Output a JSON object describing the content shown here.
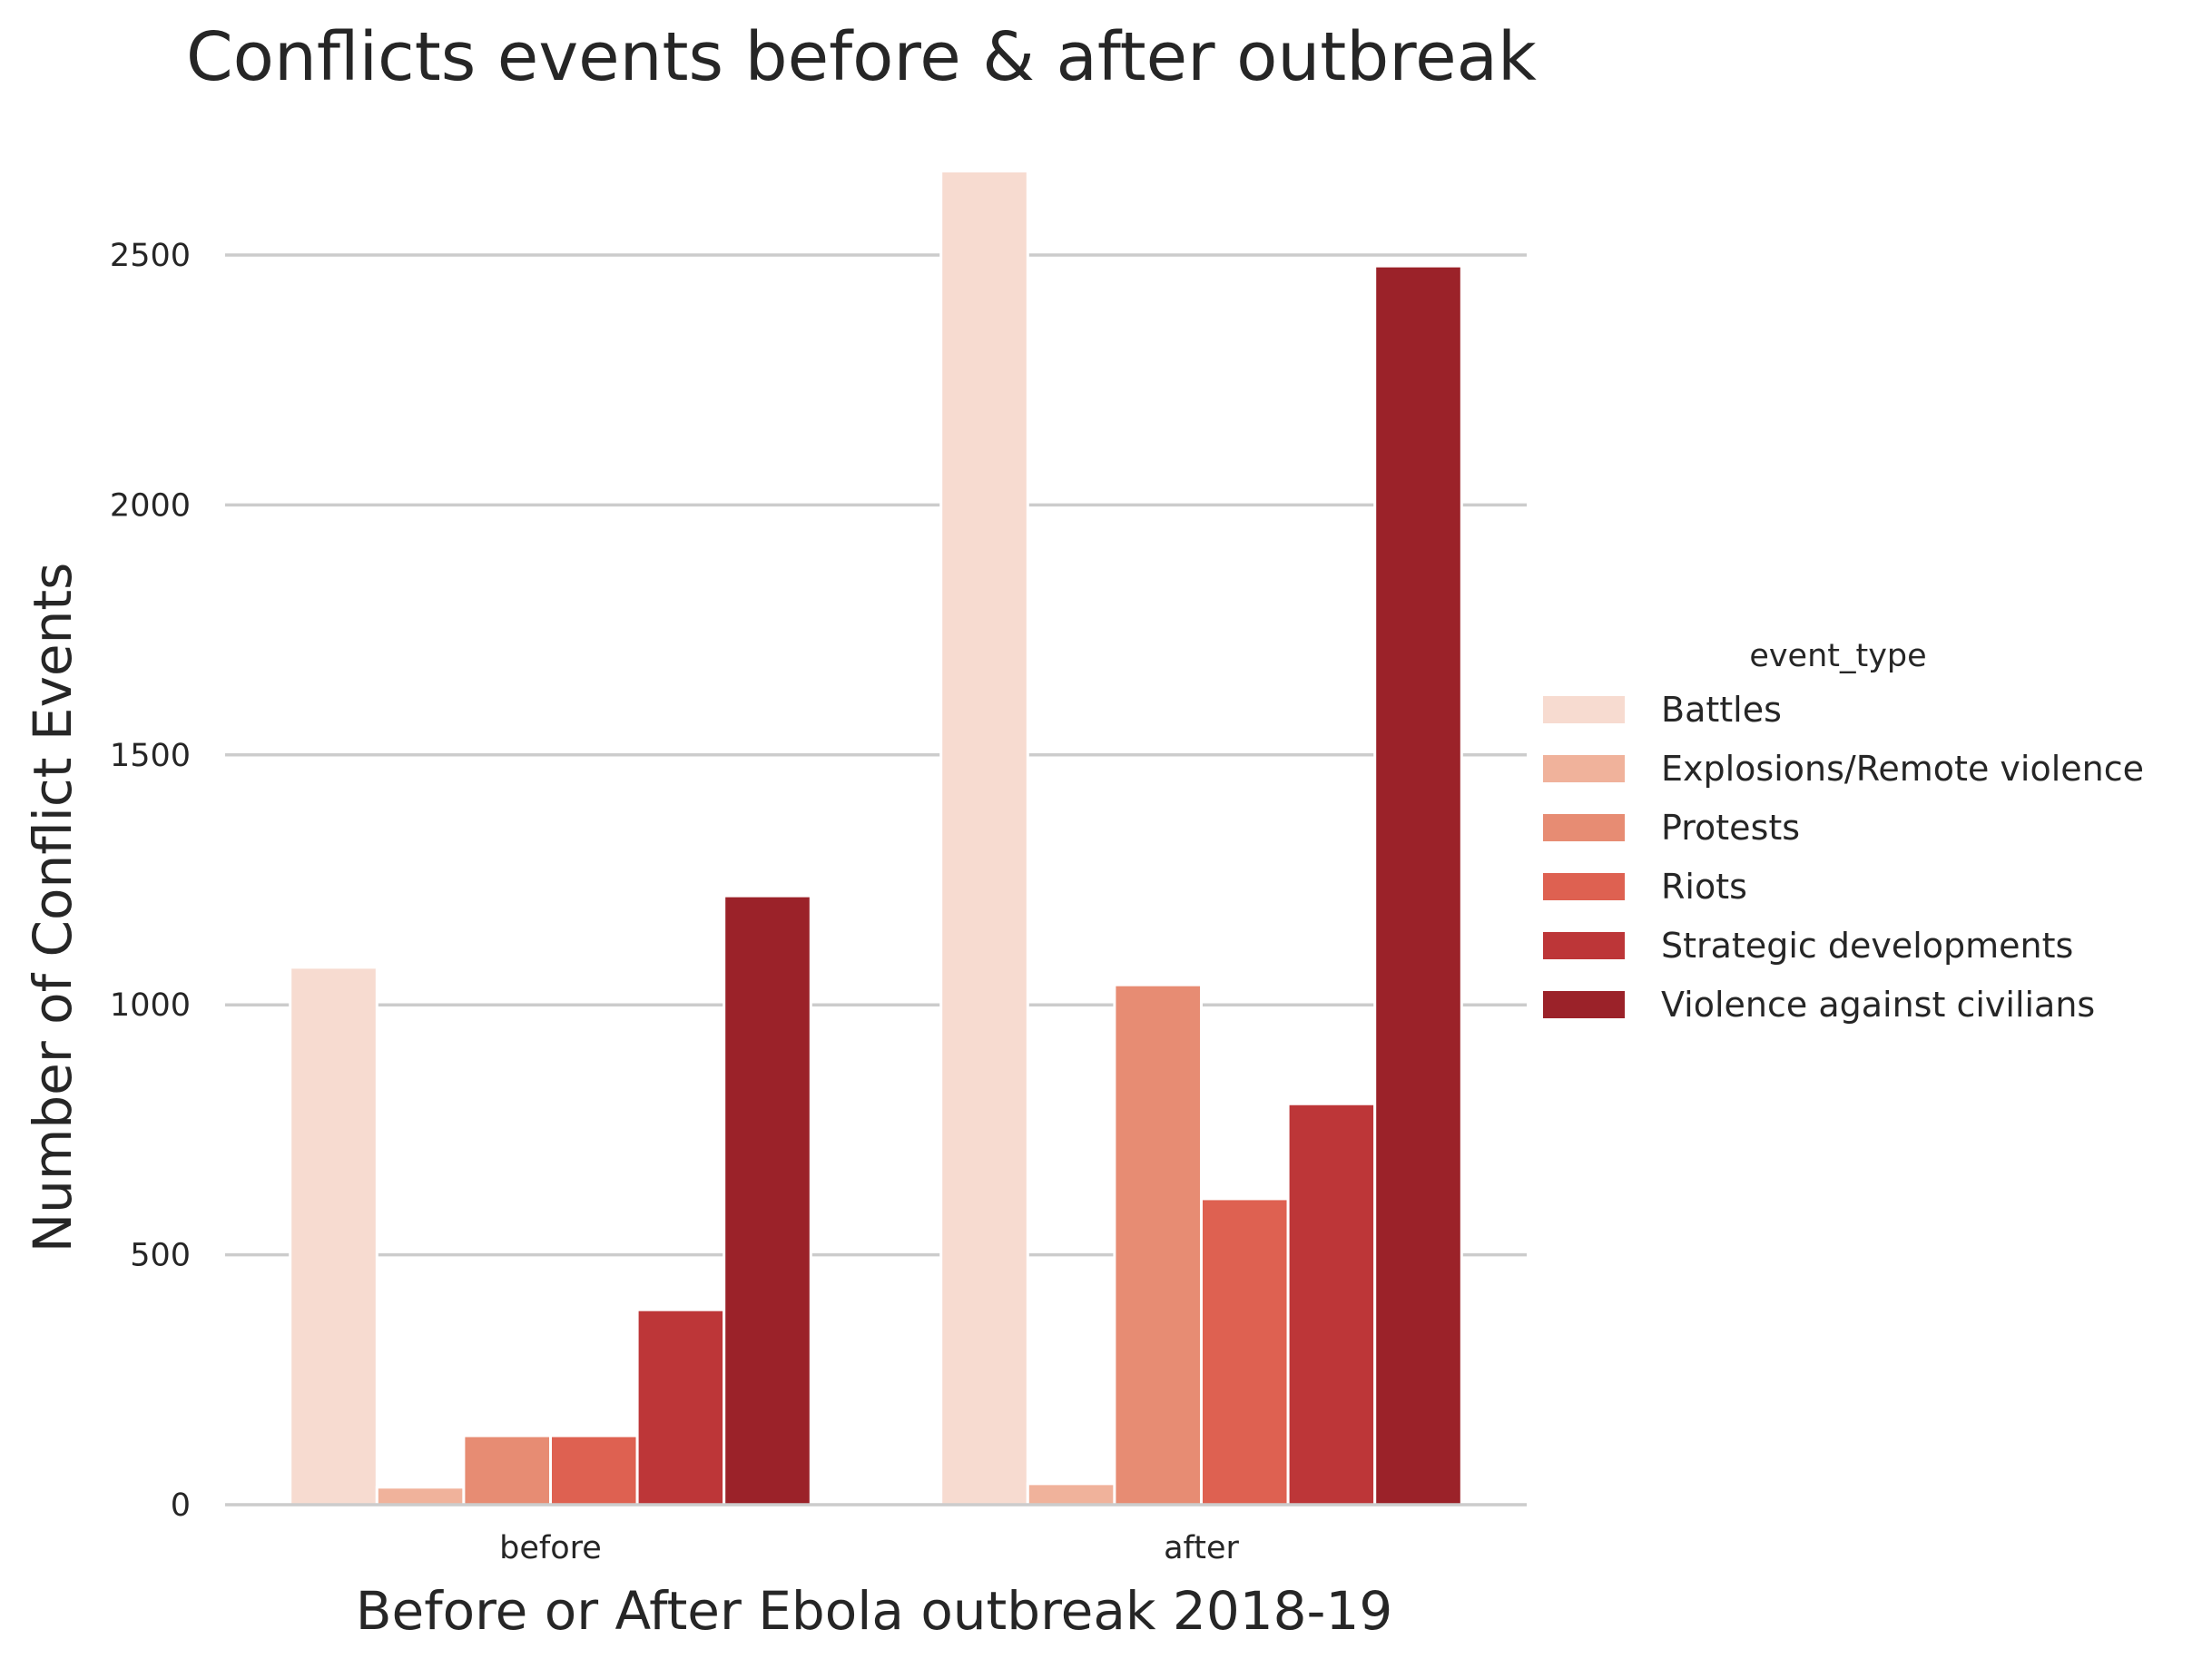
{
  "chart_data": {
    "type": "bar",
    "title": "Conflicts events before & after outbreak",
    "xlabel": "Before or After Ebola outbreak 2018-19",
    "ylabel": "Number of Conflict Events",
    "categories": [
      "before",
      "after"
    ],
    "ylim": [
      0,
      2700
    ],
    "yticks": [
      0,
      500,
      1000,
      1500,
      2000,
      2500
    ],
    "grid": "horizontal",
    "legend": {
      "title": "event_type",
      "placement": "right"
    },
    "series": [
      {
        "name": "Battles",
        "color": "#f7dbd0",
        "values": [
          1075,
          2668
        ]
      },
      {
        "name": "Explosions/Remote violence",
        "color": "#f0b29b",
        "values": [
          35,
          42
        ]
      },
      {
        "name": "Protests",
        "color": "#e78c73",
        "values": [
          138,
          1040
        ]
      },
      {
        "name": "Riots",
        "color": "#de6151",
        "values": [
          138,
          612
        ]
      },
      {
        "name": "Strategic developments",
        "color": "#bd3638",
        "values": [
          390,
          802
        ]
      },
      {
        "name": "Violence against civilians",
        "color": "#9b2229",
        "values": [
          1218,
          2478
        ]
      }
    ]
  }
}
